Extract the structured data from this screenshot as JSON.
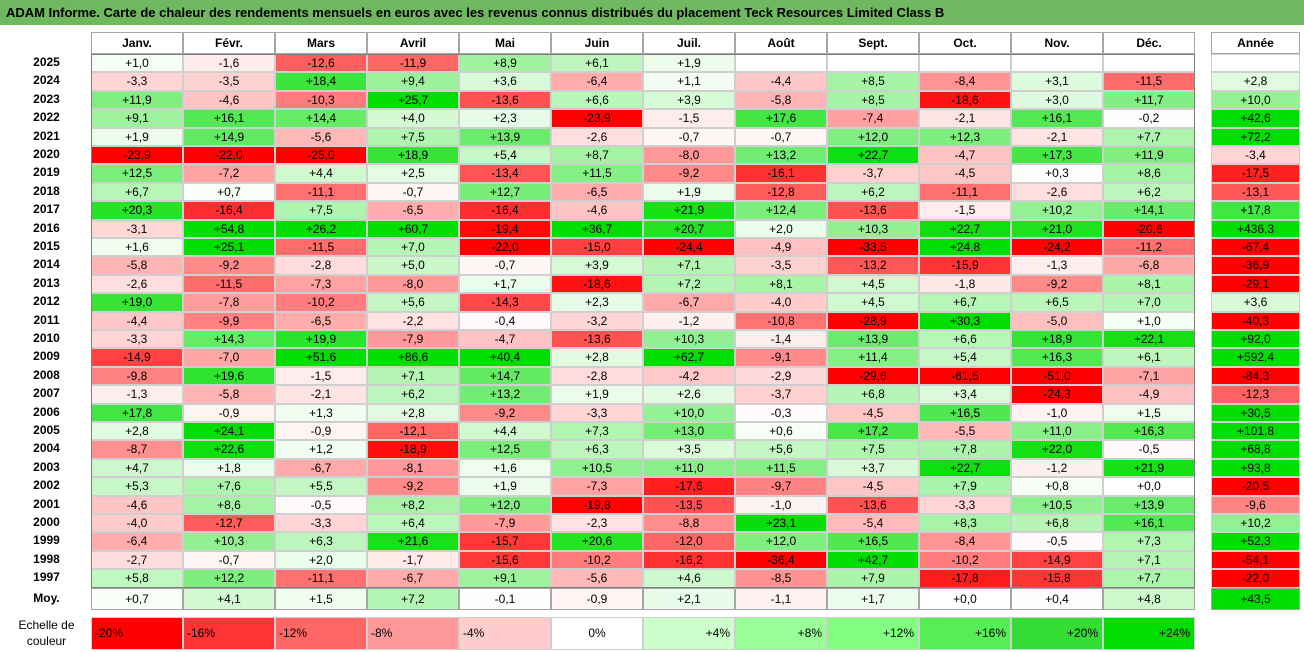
{
  "chart_data": {
    "type": "heatmap",
    "title": "ADAM Informe. Carte de chaleur des rendements mensuels en euros avec les revenus connus distribués du placement Teck Resources Limited Class B",
    "columns": [
      "Janv.",
      "Févr.",
      "Mars",
      "Avril",
      "Mai",
      "Juin",
      "Juil.",
      "Août",
      "Sept.",
      "Oct.",
      "Nov.",
      "Déc."
    ],
    "year_header": "Année",
    "rows": [
      {
        "year": "2025",
        "values": [
          "+1,0",
          "-1,6",
          "-12,6",
          "-11,9",
          "+8,9",
          "+6,1",
          "+1,9",
          "",
          "",
          "",
          "",
          ""
        ],
        "annual": ""
      },
      {
        "year": "2024",
        "values": [
          "-3,3",
          "-3,5",
          "+18,4",
          "+9,4",
          "+3,6",
          "-6,4",
          "+1,1",
          "-4,4",
          "+8,5",
          "-8,4",
          "+3,1",
          "-11,5"
        ],
        "annual": "+2,8"
      },
      {
        "year": "2023",
        "values": [
          "+11,9",
          "-4,6",
          "-10,3",
          "+25,7",
          "-13,6",
          "+6,6",
          "+3,9",
          "-5,8",
          "+8,5",
          "-18,6",
          "+3,0",
          "+11,7"
        ],
        "annual": "+10,0"
      },
      {
        "year": "2022",
        "values": [
          "+9,1",
          "+16,1",
          "+14,4",
          "+4,0",
          "+2,3",
          "-23,9",
          "-1,5",
          "+17,6",
          "-7,4",
          "-2,1",
          "+16,1",
          "-0,2"
        ],
        "annual": "+42,6"
      },
      {
        "year": "2021",
        "values": [
          "+1,9",
          "+14,9",
          "-5,6",
          "+7,5",
          "+13,9",
          "-2,6",
          "-0,7",
          "-0,7",
          "+12,0",
          "+12,3",
          "-2,1",
          "+7,7"
        ],
        "annual": "+72,2"
      },
      {
        "year": "2020",
        "values": [
          "-23,9",
          "-22,0",
          "-25,0",
          "+18,9",
          "+5,4",
          "+8,7",
          "-8,0",
          "+13,2",
          "+22,7",
          "-4,7",
          "+17,3",
          "+11,9"
        ],
        "annual": "-3,4"
      },
      {
        "year": "2019",
        "values": [
          "+12,5",
          "-7,2",
          "+4,4",
          "+2,5",
          "-13,4",
          "+11,5",
          "-9,2",
          "-16,1",
          "-3,7",
          "-4,5",
          "+0,3",
          "+8,6"
        ],
        "annual": "-17,5"
      },
      {
        "year": "2018",
        "values": [
          "+6,7",
          "+0,7",
          "-11,1",
          "-0,7",
          "+12,7",
          "-6,5",
          "+1,9",
          "-12,8",
          "+6,2",
          "-11,1",
          "-2,6",
          "+6,2"
        ],
        "annual": "-13,1"
      },
      {
        "year": "2017",
        "values": [
          "+20,3",
          "-16,4",
          "+7,5",
          "-6,5",
          "-16,4",
          "-4,6",
          "+21,9",
          "+12,4",
          "-13,6",
          "-1,5",
          "+10,2",
          "+14,1"
        ],
        "annual": "+17,8"
      },
      {
        "year": "2016",
        "values": [
          "-3,1",
          "+54,8",
          "+26,2",
          "+60,7",
          "-19,4",
          "+36,7",
          "+20,7",
          "+2,0",
          "+10,3",
          "+22,7",
          "+21,0",
          "-20,6"
        ],
        "annual": "+436,3"
      },
      {
        "year": "2015",
        "values": [
          "+1,6",
          "+25,1",
          "-11,5",
          "+7,0",
          "-22,0",
          "-15,0",
          "-24,4",
          "-4,9",
          "-33,5",
          "+24,8",
          "-24,2",
          "-11,2"
        ],
        "annual": "-67,4"
      },
      {
        "year": "2014",
        "values": [
          "-5,8",
          "-9,2",
          "-2,8",
          "+5,0",
          "-0,7",
          "+3,9",
          "+7,1",
          "-3,5",
          "-13,2",
          "-15,9",
          "-1,3",
          "-6,8"
        ],
        "annual": "-36,9"
      },
      {
        "year": "2013",
        "values": [
          "-2,6",
          "-11,5",
          "-7,3",
          "-8,0",
          "+1,7",
          "-18,6",
          "+7,2",
          "+8,1",
          "+4,5",
          "-1,8",
          "-9,2",
          "+8,1"
        ],
        "annual": "-29,1"
      },
      {
        "year": "2012",
        "values": [
          "+19,0",
          "-7,8",
          "-10,2",
          "+5,6",
          "-14,3",
          "+2,3",
          "-6,7",
          "-4,0",
          "+4,5",
          "+6,7",
          "+6,5",
          "+7,0"
        ],
        "annual": "+3,6"
      },
      {
        "year": "2011",
        "values": [
          "-4,4",
          "-9,9",
          "-6,5",
          "-2,2",
          "-0,4",
          "-3,2",
          "-1,2",
          "-10,8",
          "-28,9",
          "+30,3",
          "-5,0",
          "+1,0"
        ],
        "annual": "-40,3"
      },
      {
        "year": "2010",
        "values": [
          "-3,3",
          "+14,3",
          "+19,9",
          "-7,9",
          "-4,7",
          "-13,6",
          "+10,3",
          "-1,4",
          "+13,9",
          "+6,6",
          "+18,9",
          "+22,1"
        ],
        "annual": "+92,0"
      },
      {
        "year": "2009",
        "values": [
          "-14,9",
          "-7,0",
          "+51,6",
          "+86,6",
          "+40,4",
          "+2,8",
          "+62,7",
          "-9,1",
          "+11,4",
          "+5,4",
          "+16,3",
          "+6,1"
        ],
        "annual": "+592,4"
      },
      {
        "year": "2008",
        "values": [
          "-9,8",
          "+19,6",
          "-1,5",
          "+7,1",
          "+14,7",
          "-2,8",
          "-4,2",
          "-2,9",
          "-29,6",
          "-61,5",
          "-51,0",
          "-7,1"
        ],
        "annual": "-84,3"
      },
      {
        "year": "2007",
        "values": [
          "-1,3",
          "-5,8",
          "-2,1",
          "+6,2",
          "+13,2",
          "+1,9",
          "+2,6",
          "-3,7",
          "+6,8",
          "+3,4",
          "-24,3",
          "-4,9"
        ],
        "annual": "-12,3"
      },
      {
        "year": "2006",
        "values": [
          "+17,8",
          "-0,9",
          "+1,3",
          "+2,8",
          "-9,2",
          "-3,3",
          "+10,0",
          "-0,3",
          "-4,5",
          "+16,5",
          "-1,0",
          "+1,5"
        ],
        "annual": "+30,5"
      },
      {
        "year": "2005",
        "values": [
          "+2,8",
          "+24,1",
          "-0,9",
          "-12,1",
          "+4,4",
          "+7,3",
          "+13,0",
          "+0,6",
          "+17,2",
          "-5,5",
          "+11,0",
          "+16,3"
        ],
        "annual": "+101,8"
      },
      {
        "year": "2004",
        "values": [
          "-8,7",
          "+22,6",
          "+1,2",
          "-18,9",
          "+12,5",
          "+6,3",
          "+3,5",
          "+5,6",
          "+7,5",
          "+7,8",
          "+22,0",
          "-0,5"
        ],
        "annual": "+68,8"
      },
      {
        "year": "2003",
        "values": [
          "+4,7",
          "+1,8",
          "-6,7",
          "-8,1",
          "+1,6",
          "+10,5",
          "+11,0",
          "+11,5",
          "+3,7",
          "+22,7",
          "-1,2",
          "+21,9"
        ],
        "annual": "+93,8"
      },
      {
        "year": "2002",
        "values": [
          "+5,3",
          "+7,6",
          "+5,5",
          "-9,2",
          "+1,9",
          "-7,3",
          "-17,6",
          "-9,7",
          "-4,5",
          "+7,9",
          "+0,8",
          "+0,0"
        ],
        "annual": "-20,5"
      },
      {
        "year": "2001",
        "values": [
          "-4,6",
          "+8,6",
          "-0,5",
          "+8,2",
          "+12,0",
          "-19,8",
          "-13,5",
          "-1,0",
          "-13,6",
          "-3,3",
          "+10,5",
          "+13,9"
        ],
        "annual": "-9,6"
      },
      {
        "year": "2000",
        "values": [
          "-4,0",
          "-12,7",
          "-3,3",
          "+6,4",
          "-7,9",
          "-2,3",
          "-8,8",
          "+23,1",
          "-5,4",
          "+8,3",
          "+6,8",
          "+16,1"
        ],
        "annual": "+10,2"
      },
      {
        "year": "1999",
        "values": [
          "-6,4",
          "+10,3",
          "+6,3",
          "+21,6",
          "-15,7",
          "+20,6",
          "-12,0",
          "+12,0",
          "+16,5",
          "-8,4",
          "-0,5",
          "+7,3"
        ],
        "annual": "+52,3"
      },
      {
        "year": "1998",
        "values": [
          "-2,7",
          "-0,7",
          "+2,0",
          "-1,7",
          "-15,6",
          "-10,2",
          "-16,2",
          "-36,4",
          "+42,7",
          "-10,2",
          "-14,9",
          "+7,1"
        ],
        "annual": "-54,1"
      },
      {
        "year": "1997",
        "values": [
          "+5,8",
          "+12,2",
          "-11,1",
          "-6,7",
          "+9,1",
          "-5,6",
          "+4,6",
          "-8,5",
          "+7,9",
          "-17,8",
          "-15,8",
          "+7,7"
        ],
        "annual": "-22,0"
      }
    ],
    "average": {
      "label": "Moy.",
      "values": [
        "+0,7",
        "+4,1",
        "+1,5",
        "+7,2",
        "-0,1",
        "-0,9",
        "+2,1",
        "-1,1",
        "+1,7",
        "+0,0",
        "+0,4",
        "+4,8"
      ],
      "annual": "+43,5"
    },
    "color_scale": {
      "label": "Echelle de couleur",
      "stops": [
        {
          "label": "-20%",
          "value": -20,
          "color": "#ff0000"
        },
        {
          "label": "-16%",
          "value": -16,
          "color": "#ff3333"
        },
        {
          "label": "-12%",
          "value": -12,
          "color": "#ff6666"
        },
        {
          "label": "-8%",
          "value": -8,
          "color": "#ff9999"
        },
        {
          "label": "-4%",
          "value": -4,
          "color": "#ffcccc"
        },
        {
          "label": "0%",
          "value": 0,
          "color": "#ffffff"
        },
        {
          "label": "+4%",
          "value": 4,
          "color": "#ccffcc"
        },
        {
          "label": "+8%",
          "value": 8,
          "color": "#99ff99"
        },
        {
          "label": "+12%",
          "value": 12,
          "color": "#80ff80"
        },
        {
          "label": "+16%",
          "value": 16,
          "color": "#55ee55"
        },
        {
          "label": "+20%",
          "value": 20,
          "color": "#33dd33"
        },
        {
          "label": "+24%",
          "value": 24,
          "color": "#00dd00"
        }
      ]
    }
  }
}
